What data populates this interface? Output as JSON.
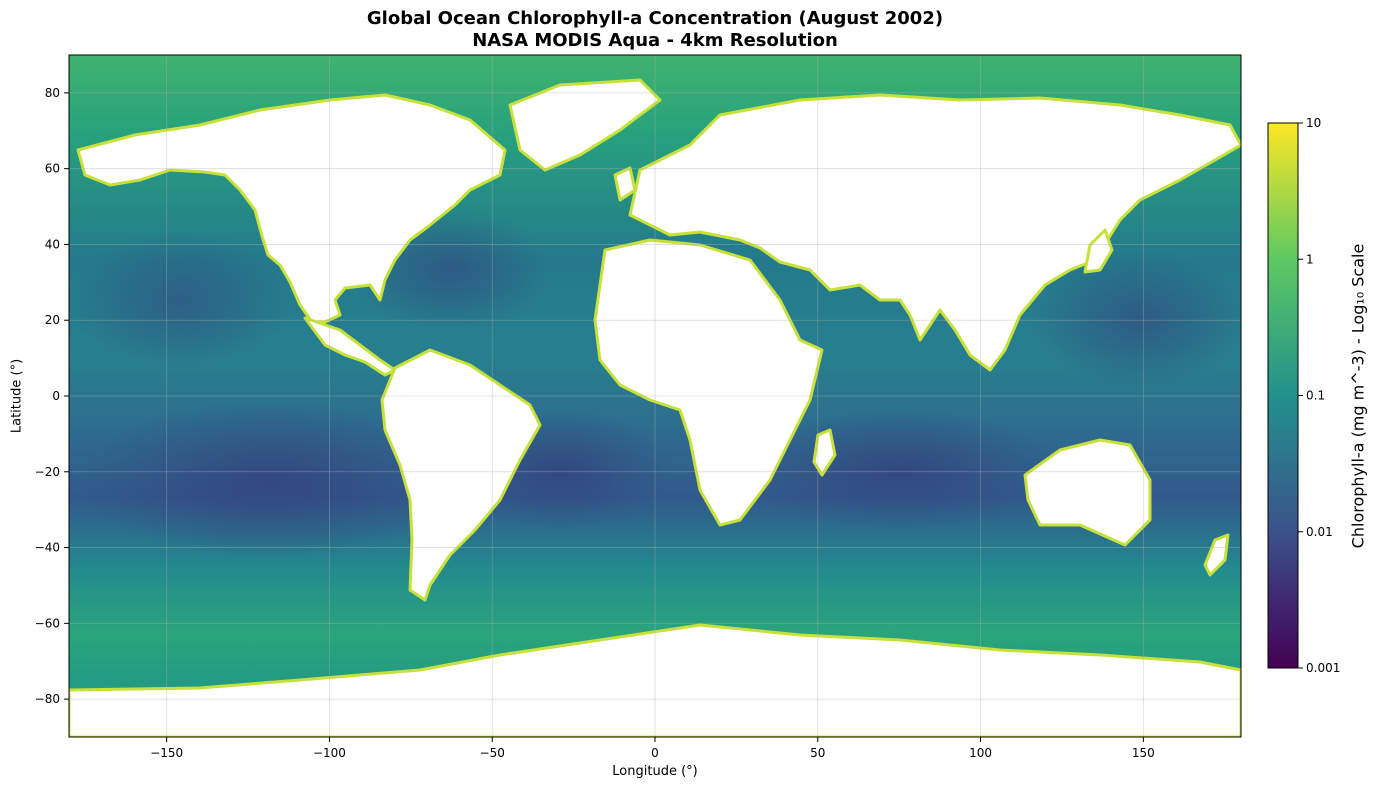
{
  "title_line1": "Global Ocean Chlorophyll-a Concentration (August 2002)",
  "title_line2": "NASA MODIS Aqua - 4km Resolution",
  "chart_data": {
    "type": "heatmap",
    "projection": "equirectangular",
    "xlabel": "Longitude (°)",
    "ylabel": "Latitude (°)",
    "xlim": [
      -180,
      180
    ],
    "ylim": [
      -90,
      90
    ],
    "xticks": [
      -150,
      -100,
      -50,
      0,
      50,
      100,
      150
    ],
    "xtick_labels": [
      "−150",
      "−100",
      "−50",
      "0",
      "50",
      "100",
      "150"
    ],
    "yticks": [
      80,
      60,
      40,
      20,
      0,
      -20,
      -40,
      -60,
      -80
    ],
    "ytick_labels": [
      "80",
      "60",
      "40",
      "20",
      "0",
      "−20",
      "−40",
      "−60",
      "−80"
    ],
    "grid": true,
    "land_color": "#ffffff",
    "colormap": "viridis",
    "colorbar": {
      "label": "Chlorophyll-a (mg m^-3) - Log₁₀ Scale",
      "scale": "log",
      "range": [
        0.001,
        10
      ],
      "ticks": [
        10,
        1,
        0.1,
        0.01,
        0.001
      ],
      "tick_labels": [
        "10",
        "1",
        "0.1",
        "0.01",
        "0.001"
      ],
      "colors": [
        "#440154",
        "#3b528b",
        "#21918c",
        "#5ec962",
        "#fde725"
      ]
    }
  }
}
